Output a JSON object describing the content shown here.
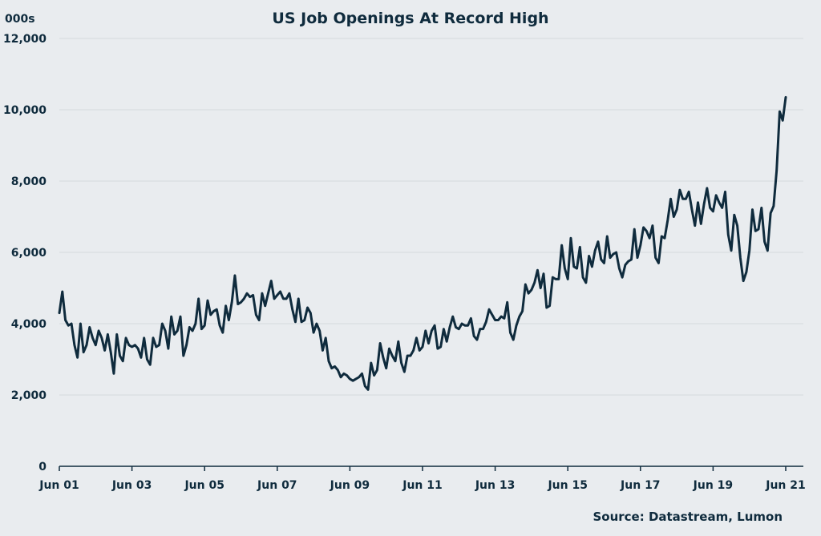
{
  "chart_data": {
    "type": "line",
    "title": "US Job Openings At Record High",
    "unit_label": "000s",
    "source": "Source: Datastream, Lumon",
    "xlabel": "",
    "ylabel": "",
    "ylim": [
      0,
      12000
    ],
    "y_ticks": [
      0,
      2000,
      4000,
      6000,
      8000,
      10000,
      12000
    ],
    "y_tick_labels": [
      "0",
      "2,000",
      "4,000",
      "6,000",
      "8,000",
      "10,000",
      "12,000"
    ],
    "x_ticks": [
      0,
      24,
      48,
      72,
      96,
      120,
      144,
      168,
      192,
      216,
      240
    ],
    "x_tick_labels": [
      "Jun 01",
      "Jun 03",
      "Jun 05",
      "Jun 07",
      "Jun 09",
      "Jun 11",
      "Jun 13",
      "Jun 15",
      "Jun 17",
      "Jun 19",
      "Jun 21"
    ],
    "grid": true,
    "line_color": "#0f2b3d",
    "series": [
      {
        "values": [
          4300,
          4900,
          4100,
          3950,
          4000,
          3400,
          3050,
          4000,
          3200,
          3400,
          3900,
          3600,
          3400,
          3800,
          3600,
          3250,
          3700,
          3200,
          2600,
          3700,
          3100,
          2950,
          3600,
          3400,
          3350,
          3400,
          3300,
          3050,
          3600,
          3000,
          2850,
          3600,
          3350,
          3400,
          4000,
          3800,
          3300,
          4200,
          3700,
          3800,
          4200,
          3100,
          3400,
          3900,
          3800,
          4000,
          4700,
          3850,
          3950,
          4650,
          4250,
          4350,
          4400,
          3950,
          3750,
          4500,
          4100,
          4600,
          5350,
          4550,
          4600,
          4700,
          4850,
          4750,
          4800,
          4250,
          4100,
          4850,
          4500,
          4850,
          5200,
          4700,
          4800,
          4900,
          4700,
          4700,
          4850,
          4400,
          4050,
          4700,
          4050,
          4100,
          4450,
          4300,
          3750,
          4000,
          3800,
          3250,
          3600,
          2950,
          2750,
          2800,
          2700,
          2500,
          2600,
          2550,
          2450,
          2400,
          2450,
          2500,
          2600,
          2250,
          2150,
          2900,
          2550,
          2700,
          3450,
          3050,
          2750,
          3300,
          3100,
          2950,
          3500,
          2900,
          2650,
          3100,
          3100,
          3250,
          3600,
          3250,
          3350,
          3800,
          3450,
          3800,
          3950,
          3300,
          3350,
          3850,
          3500,
          3900,
          4200,
          3900,
          3850,
          4000,
          3950,
          3950,
          4150,
          3650,
          3550,
          3850,
          3850,
          4050,
          4400,
          4250,
          4100,
          4100,
          4200,
          4150,
          4600,
          3750,
          3550,
          3950,
          4200,
          4350,
          5100,
          4850,
          4950,
          5150,
          5500,
          5000,
          5400,
          4450,
          4500,
          5300,
          5250,
          5250,
          6200,
          5550,
          5250,
          6400,
          5600,
          5550,
          6150,
          5300,
          5150,
          5900,
          5600,
          6050,
          6300,
          5800,
          5700,
          6450,
          5850,
          5950,
          6000,
          5550,
          5300,
          5650,
          5750,
          5800,
          6650,
          5850,
          6200,
          6700,
          6600,
          6400,
          6750,
          5850,
          5700,
          6450,
          6400,
          6900,
          7500,
          7000,
          7200,
          7750,
          7500,
          7500,
          7700,
          7200,
          6750,
          7400,
          6800,
          7350,
          7800,
          7250,
          7150,
          7600,
          7400,
          7250,
          7700,
          6500,
          6050,
          7050,
          6750,
          5850,
          5200,
          5450,
          6050,
          7200,
          6600,
          6650,
          7250,
          6300,
          6050,
          7100,
          7300,
          8300,
          9950,
          9700,
          10350
        ]
      }
    ]
  }
}
